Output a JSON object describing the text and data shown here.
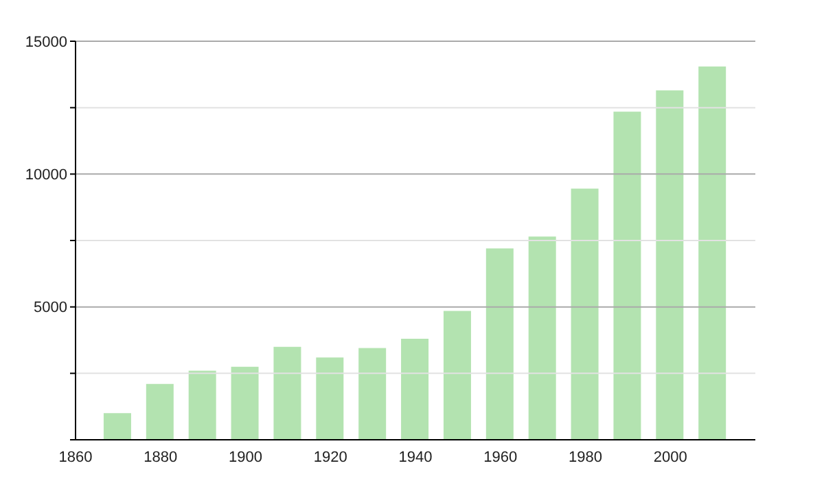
{
  "chart_data": {
    "type": "bar",
    "x": [
      1870,
      1880,
      1890,
      1900,
      1910,
      1920,
      1930,
      1940,
      1950,
      1960,
      1970,
      1980,
      1990,
      2000,
      2010
    ],
    "values": [
      1000,
      2100,
      2600,
      2750,
      3500,
      3100,
      3450,
      3800,
      4850,
      7200,
      7650,
      9450,
      12350,
      13150,
      14050
    ],
    "color": "#b3e3b0",
    "xlim": [
      1860,
      2020
    ],
    "xticks": [
      1860,
      1880,
      1900,
      1920,
      1940,
      1960,
      1980,
      2000
    ],
    "ylim": [
      0,
      15000
    ],
    "yticks": [
      {
        "value": 0,
        "label": null
      },
      {
        "value": 2500,
        "label": null
      },
      5000,
      {
        "value": 7500,
        "label": null
      },
      10000,
      {
        "value": 12500,
        "label": null
      },
      15000
    ],
    "grid": "y"
  }
}
